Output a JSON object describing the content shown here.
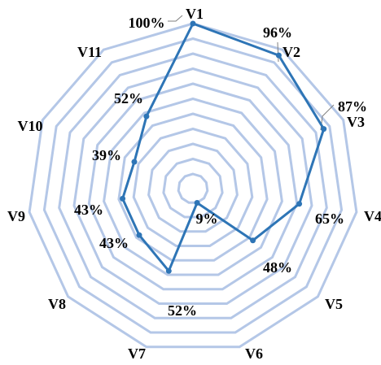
{
  "chart_data": {
    "type": "radar",
    "categories": [
      "V1",
      "V2",
      "V3",
      "V4",
      "V5",
      "V6",
      "V7",
      "V8",
      "V9",
      "V10",
      "V11"
    ],
    "series": [
      {
        "values": [
          100,
          96,
          87,
          65,
          48,
          9,
          52,
          43,
          43,
          39,
          52
        ],
        "labels": [
          "100%",
          "96%",
          "87%",
          "65%",
          "48%",
          "9%",
          "52%",
          "43%",
          "43%",
          "39%",
          "52%"
        ]
      }
    ],
    "range": [
      0,
      100
    ],
    "grid_rings": 11,
    "grid": true,
    "legend": "none",
    "colors": {
      "series": "#2e75b6",
      "grid": "#b4c7e7",
      "leader": "#7f7f7f"
    }
  }
}
